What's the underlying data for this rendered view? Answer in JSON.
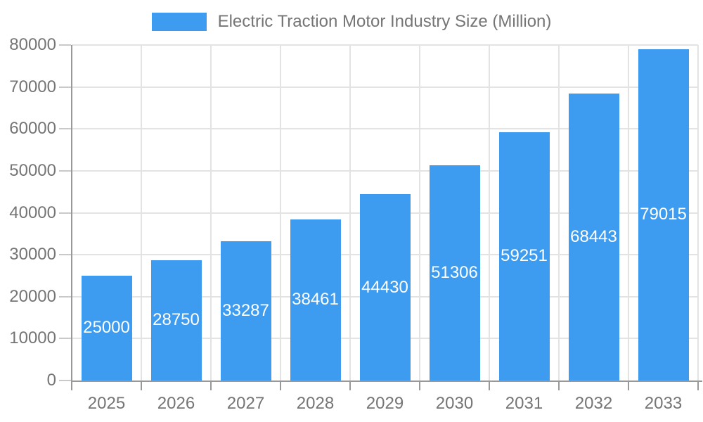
{
  "legend": {
    "label": "Electric Traction Motor Industry Size (Million)"
  },
  "chart_data": {
    "type": "bar",
    "title": "Electric Traction Motor Industry Size (Million)",
    "categories": [
      "2025",
      "2026",
      "2027",
      "2028",
      "2029",
      "2030",
      "2031",
      "2032",
      "2033"
    ],
    "series": [
      {
        "name": "Electric Traction Motor Industry Size (Million)",
        "values": [
          25000,
          28750,
          33287,
          38461,
          44430,
          51306,
          59251,
          68443,
          79015
        ]
      }
    ],
    "data_labels": [
      "25000",
      "28750",
      "33287",
      "38461",
      "44430",
      "51306",
      "59251",
      "68443",
      "79015"
    ],
    "xlabel": "",
    "ylabel": "",
    "ylim": [
      0,
      80000
    ],
    "ytick_step": 10000,
    "ytick_labels": [
      "0",
      "10000",
      "20000",
      "30000",
      "40000",
      "50000",
      "60000",
      "70000",
      "80000"
    ],
    "grid": true,
    "legend_position": "top-center",
    "colors": {
      "bar": "#3D9BF0",
      "bar_label": "#FFFFFF",
      "axis_text": "#757575",
      "legend_text": "#757575",
      "axis_line": "#999999",
      "grid_line": "#E3E3E3",
      "y_tick": "#C9C9C9",
      "x_tick": "#999999"
    }
  }
}
